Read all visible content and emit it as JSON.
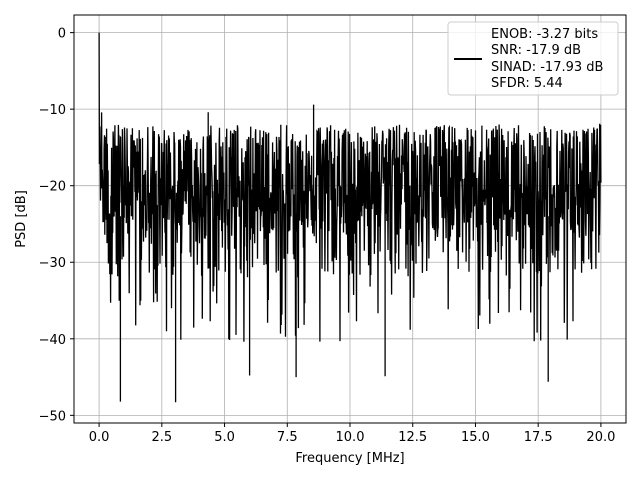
{
  "chart_data": {
    "type": "line",
    "title": "",
    "xlabel": "Frequency [MHz]",
    "ylabel": "PSD [dB]",
    "xlim": [
      -1.0,
      21.0
    ],
    "ylim": [
      -51.0,
      2.3
    ],
    "xticks": [
      0.0,
      2.5,
      5.0,
      7.5,
      10.0,
      12.5,
      15.0,
      17.5,
      20.0
    ],
    "xtick_labels": [
      "0.0",
      "2.5",
      "5.0",
      "7.5",
      "10.0",
      "12.5",
      "15.0",
      "17.5",
      "20.0"
    ],
    "yticks": [
      0,
      -10,
      -20,
      -30,
      -40,
      -50
    ],
    "ytick_labels": [
      "0",
      "−10",
      "−20",
      "−30",
      "−40",
      "−50"
    ],
    "grid": true,
    "legend_position": "top-right",
    "legend_lines": [
      "ENOB: -3.27 bits",
      "SNR: -17.9 dB",
      "SINAD: -17.93 dB",
      "SFDR: 5.44"
    ],
    "series": [
      {
        "color": "#000000",
        "description_points": {
          "x_range": [
            0.0,
            20.0
          ],
          "peak": {
            "x": 0.0,
            "y": 0.0
          },
          "typical_band": [
            -32,
            -12
          ],
          "min_dips": [
            {
              "x": 0.85,
              "y": -48.2
            },
            {
              "x": 3.05,
              "y": -48.3
            },
            {
              "x": 6.0,
              "y": -44.8
            },
            {
              "x": 7.85,
              "y": -45.0
            },
            {
              "x": 11.4,
              "y": -44.9
            },
            {
              "x": 17.9,
              "y": -45.6
            }
          ],
          "max_peaks": [
            {
              "x": 8.55,
              "y": -9.4
            },
            {
              "x": 4.35,
              "y": -10.4
            },
            {
              "x": 19.95,
              "y": -11.9
            }
          ]
        }
      }
    ]
  }
}
